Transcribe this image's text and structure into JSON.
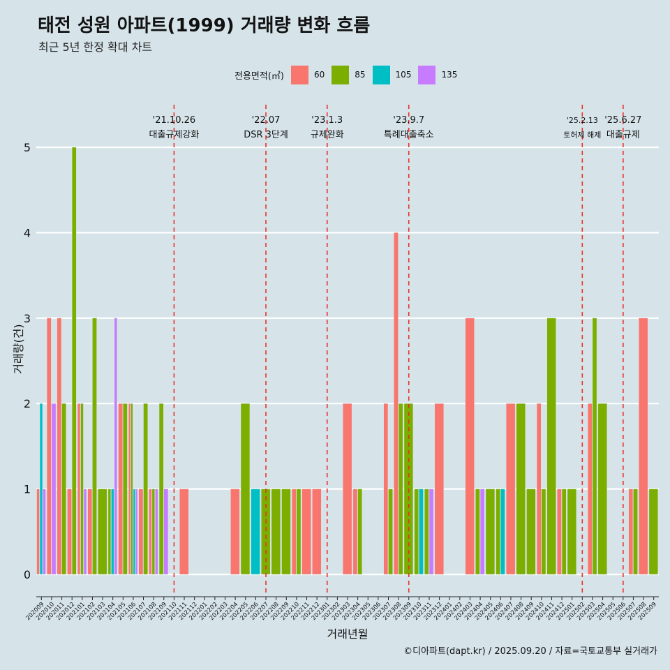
{
  "title": "태전 성원 아파트(1999) 거래량 변화 흐름",
  "subtitle": "최근 5년 한정 확대 차트",
  "legend": {
    "title": "전용면적(㎡)",
    "items": [
      {
        "label": "60",
        "color": "#f8766d"
      },
      {
        "label": "85",
        "color": "#7cae00"
      },
      {
        "label": "105",
        "color": "#00bfc4"
      },
      {
        "label": "135",
        "color": "#c77cff"
      }
    ]
  },
  "caption": "©디아파트(dapt.kr) / 2025.09.20 / 자료=국토교통부 실거래가",
  "chart_data": {
    "type": "bar",
    "xlabel": "거래년월",
    "ylabel": "거래량(건)",
    "ylim": [
      0,
      5
    ],
    "yticks": [
      0,
      1,
      2,
      3,
      4,
      5
    ],
    "categories": [
      "202009",
      "202010",
      "202011",
      "202012",
      "202101",
      "202102",
      "202103",
      "202104",
      "202105",
      "202106",
      "202107",
      "202108",
      "202109",
      "202110",
      "202111",
      "202112",
      "202201",
      "202202",
      "202203",
      "202204",
      "202205",
      "202206",
      "202207",
      "202208",
      "202209",
      "202210",
      "202211",
      "202212",
      "202301",
      "202302",
      "202303",
      "202304",
      "202305",
      "202306",
      "202307",
      "202308",
      "202309",
      "202310",
      "202311",
      "202312",
      "202401",
      "202402",
      "202403",
      "202404",
      "202405",
      "202406",
      "202407",
      "202408",
      "202409",
      "202410",
      "202411",
      "202412",
      "202501",
      "202502",
      "202503",
      "202504",
      "202505",
      "202506",
      "202507",
      "202508",
      "202509"
    ],
    "series": [
      {
        "name": "60",
        "color": "#f8766d",
        "values": [
          1,
          3,
          3,
          1,
          2,
          1,
          0,
          0,
          2,
          2,
          1,
          1,
          0,
          0,
          1,
          0,
          0,
          0,
          0,
          1,
          0,
          0,
          0,
          0,
          0,
          1,
          1,
          1,
          0,
          0,
          2,
          1,
          0,
          0,
          2,
          4,
          0,
          0,
          0,
          2,
          0,
          0,
          3,
          0,
          0,
          0,
          2,
          0,
          0,
          2,
          0,
          1,
          0,
          0,
          2,
          0,
          0,
          0,
          1,
          3,
          0
        ]
      },
      {
        "name": "85",
        "color": "#7cae00",
        "values": [
          0,
          0,
          2,
          5,
          2,
          3,
          1,
          1,
          2,
          2,
          2,
          1,
          2,
          0,
          0,
          0,
          0,
          0,
          0,
          0,
          2,
          0,
          1,
          1,
          1,
          1,
          0,
          0,
          0,
          0,
          0,
          1,
          0,
          0,
          1,
          2,
          2,
          1,
          1,
          0,
          0,
          0,
          0,
          1,
          1,
          1,
          0,
          2,
          1,
          1,
          3,
          1,
          1,
          0,
          3,
          2,
          0,
          0,
          1,
          0,
          1
        ]
      },
      {
        "name": "105",
        "color": "#00bfc4",
        "values": [
          2,
          0,
          0,
          0,
          0,
          0,
          0,
          1,
          0,
          1,
          0,
          0,
          0,
          0,
          0,
          0,
          0,
          0,
          0,
          0,
          0,
          1,
          0,
          0,
          0,
          0,
          0,
          0,
          0,
          0,
          0,
          0,
          0,
          0,
          0,
          0,
          0,
          1,
          0,
          0,
          0,
          0,
          0,
          0,
          0,
          1,
          0,
          0,
          0,
          0,
          0,
          0,
          0,
          0,
          0,
          0,
          0,
          0,
          0,
          0,
          0
        ]
      },
      {
        "name": "135",
        "color": "#c77cff",
        "values": [
          1,
          2,
          0,
          0,
          1,
          0,
          0,
          3,
          0,
          1,
          0,
          1,
          1,
          0,
          0,
          0,
          0,
          0,
          0,
          0,
          0,
          0,
          0,
          0,
          0,
          0,
          0,
          0,
          0,
          0,
          0,
          0,
          0,
          0,
          0,
          0,
          0,
          0,
          1,
          0,
          0,
          0,
          0,
          1,
          0,
          0,
          0,
          0,
          0,
          0,
          0,
          0,
          0,
          0,
          0,
          0,
          0,
          0,
          0,
          0,
          0
        ]
      }
    ],
    "events": [
      {
        "month": "202110",
        "date": "'21.10.26",
        "label": "대출규제강화"
      },
      {
        "month": "202207",
        "date": "'22.07",
        "label": "DSR 3단계"
      },
      {
        "month": "202301",
        "date": "'23.1.3",
        "label": "규제완화"
      },
      {
        "month": "202309",
        "date": "'23.9.7",
        "label": "특례대출축소"
      },
      {
        "month": "202502",
        "date": "'25.2.13",
        "label": "토허제 해제"
      },
      {
        "month": "202506",
        "date": "'25.6.27",
        "label": "대출규제"
      }
    ],
    "event_line_color": "#e8312a"
  }
}
